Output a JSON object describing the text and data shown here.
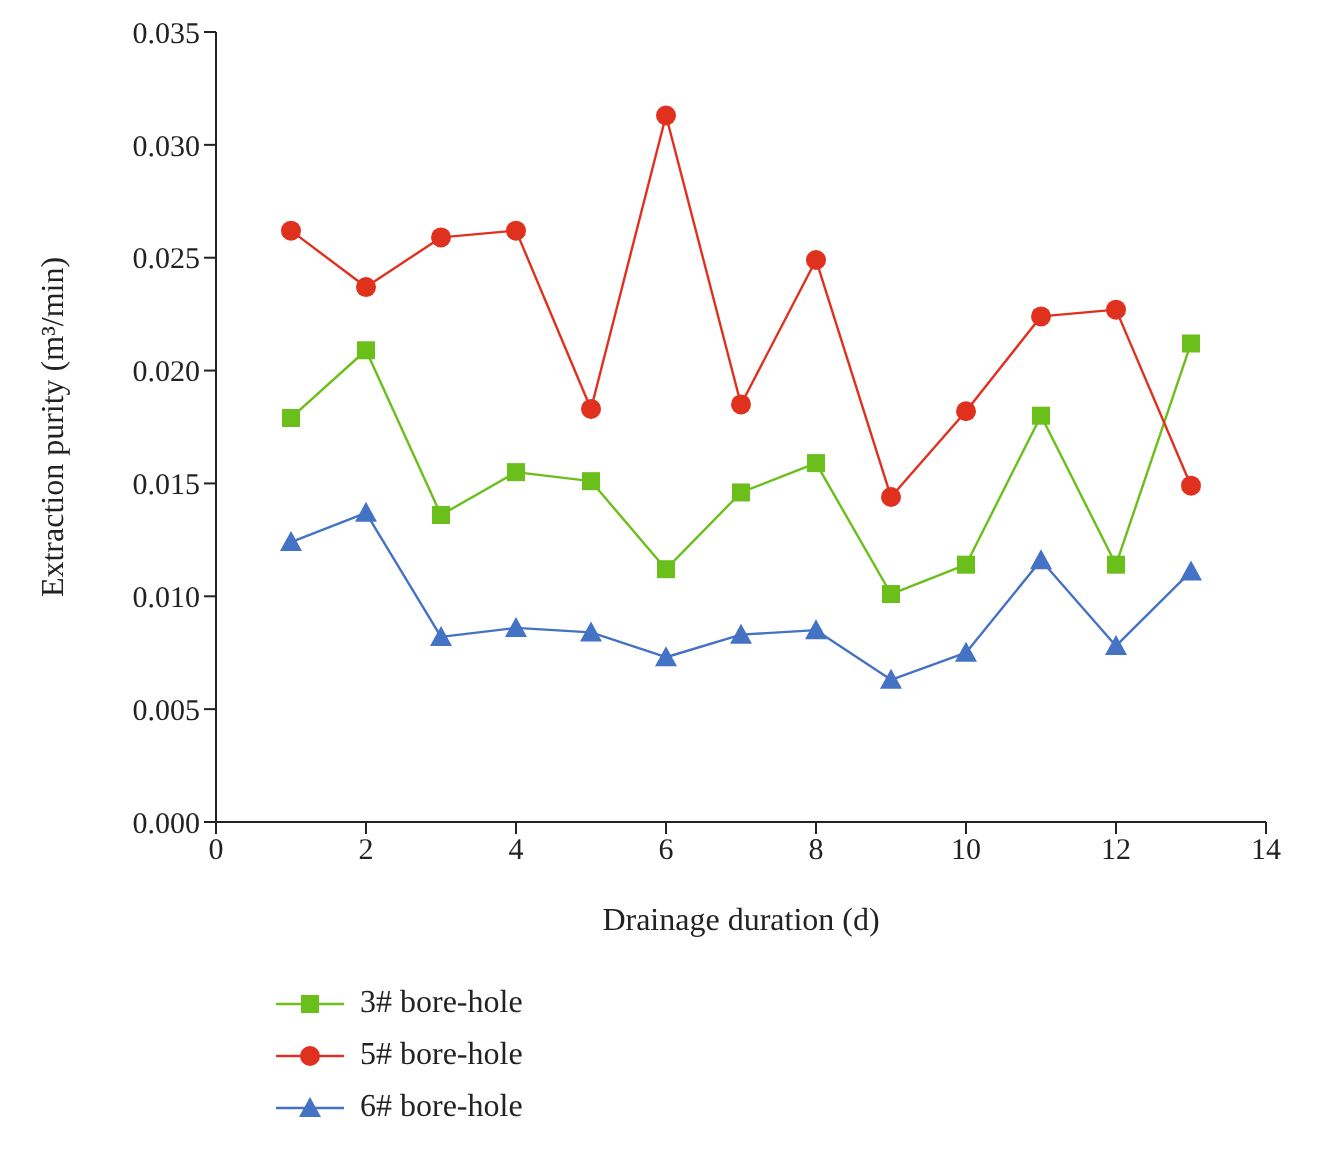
{
  "chart_data": {
    "type": "line",
    "xlabel": "Drainage duration (d)",
    "ylabel": "Extraction purity (m³/min)",
    "x": [
      1,
      2,
      3,
      4,
      5,
      6,
      7,
      8,
      9,
      10,
      11,
      12,
      13
    ],
    "xlim": [
      0,
      14
    ],
    "xticks": [
      0,
      2,
      4,
      6,
      8,
      10,
      12,
      14
    ],
    "ylim": [
      0,
      0.035
    ],
    "yticks": [
      {
        "value": 0,
        "label": "0.000"
      },
      {
        "value": 0.005,
        "label": "0.005"
      },
      {
        "value": 0.01,
        "label": "0.010"
      },
      {
        "value": 0.015,
        "label": "0.015"
      },
      {
        "value": 0.02,
        "label": "0.020"
      },
      {
        "value": 0.025,
        "label": "0.025"
      },
      {
        "value": 0.03,
        "label": "0.030"
      },
      {
        "value": 0.035,
        "label": "0.035"
      }
    ],
    "grid": false,
    "legend": "bottom left",
    "line_style": "solid",
    "series": [
      {
        "name": "3# bore-hole",
        "color": "#6abf1b",
        "marker": "square",
        "values": [
          0.0179,
          0.0209,
          0.0136,
          0.0155,
          0.0151,
          0.0112,
          0.0146,
          0.0159,
          0.0101,
          0.0114,
          0.018,
          0.0114,
          0.0212
        ]
      },
      {
        "name": "5# bore-hole",
        "color": "#e0301e",
        "marker": "circle",
        "values": [
          0.0262,
          0.0237,
          0.0259,
          0.0262,
          0.0183,
          0.0313,
          0.0185,
          0.0249,
          0.0144,
          0.0182,
          0.0224,
          0.0227,
          0.0149
        ]
      },
      {
        "name": "6# bore-hole",
        "color": "#4472c4",
        "marker": "triangle",
        "values": [
          0.0124,
          0.0137,
          0.0082,
          0.0086,
          0.0084,
          0.0073,
          0.0083,
          0.0085,
          0.0063,
          0.0075,
          0.0116,
          0.0078,
          0.0111
        ]
      }
    ]
  }
}
